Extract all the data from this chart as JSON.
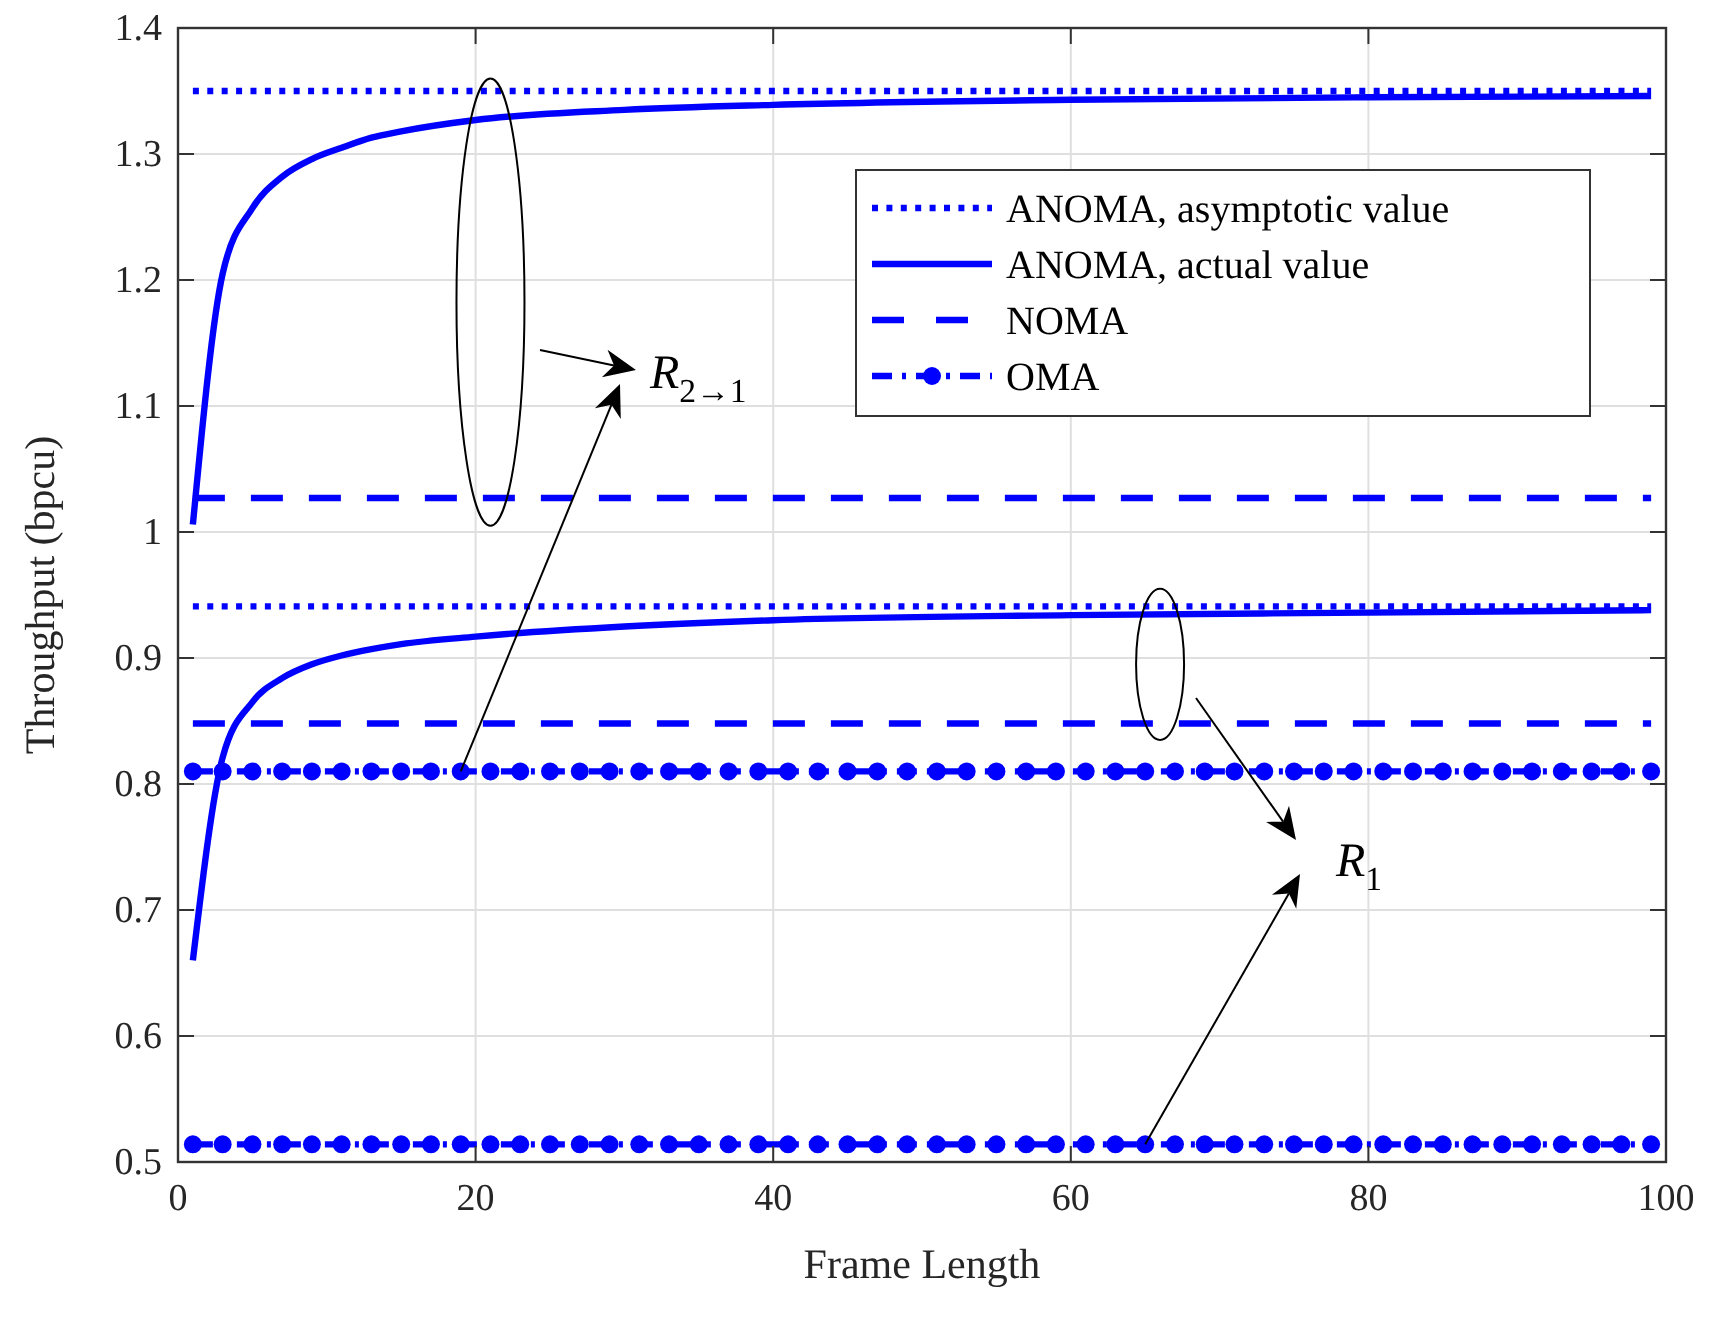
{
  "chart_data": {
    "type": "line",
    "xlabel": "Frame Length",
    "ylabel": "Throughput (bpcu)",
    "xlim": [
      0,
      100
    ],
    "ylim": [
      0.5,
      1.4
    ],
    "xticks": [
      0,
      20,
      40,
      60,
      80,
      100
    ],
    "yticks": [
      0.5,
      0.6,
      0.7,
      0.8,
      0.9,
      1,
      1.1,
      1.2,
      1.3,
      1.4
    ],
    "grid": true,
    "legend": "top right",
    "series": [
      {
        "name": "ANOMA, asymptotic value",
        "color": "#0000ff",
        "line_style": "dotted",
        "marker": "none",
        "x": [
          1,
          99
        ],
        "values": [
          1.35,
          1.35
        ]
      },
      {
        "name": "ANOMA, actual value",
        "color": "#0000ff",
        "line_style": "solid",
        "marker": "none",
        "x": [
          1,
          3,
          5,
          7,
          9,
          11,
          13,
          15,
          20,
          30,
          40,
          60,
          80,
          99
        ],
        "values": [
          1.006,
          1.205,
          1.257,
          1.282,
          1.296,
          1.305,
          1.313,
          1.318,
          1.327,
          1.335,
          1.339,
          1.343,
          1.345,
          1.346
        ]
      },
      {
        "name": "NOMA",
        "color": "#0000ff",
        "line_style": "dashed",
        "marker": "none",
        "x": [
          1,
          99
        ],
        "values": [
          1.027,
          1.027
        ]
      },
      {
        "name": "OMA",
        "color": "#0000ff",
        "line_style": "dashed",
        "marker": "circle",
        "x": [
          1,
          3,
          5,
          7,
          9,
          11,
          13,
          15,
          17,
          19,
          21,
          23,
          25,
          27,
          29,
          31,
          33,
          35,
          37,
          39,
          41,
          43,
          45,
          47,
          49,
          51,
          53,
          55,
          57,
          59,
          61,
          63,
          65,
          67,
          69,
          71,
          73,
          75,
          77,
          79,
          81,
          83,
          85,
          87,
          89,
          91,
          93,
          95,
          97,
          99
        ],
        "values": [
          0.81,
          0.81,
          0.81,
          0.81,
          0.81,
          0.81,
          0.81,
          0.81,
          0.81,
          0.81,
          0.81,
          0.81,
          0.81,
          0.81,
          0.81,
          0.81,
          0.81,
          0.81,
          0.81,
          0.81,
          0.81,
          0.81,
          0.81,
          0.81,
          0.81,
          0.81,
          0.81,
          0.81,
          0.81,
          0.81,
          0.81,
          0.81,
          0.81,
          0.81,
          0.81,
          0.81,
          0.81,
          0.81,
          0.81,
          0.81,
          0.81,
          0.81,
          0.81,
          0.81,
          0.81,
          0.81,
          0.81,
          0.81,
          0.81,
          0.81
        ]
      },
      {
        "color": "#0000ff",
        "line_style": "dotted",
        "marker": "none",
        "x": [
          1,
          99
        ],
        "values": [
          0.941,
          0.941
        ]
      },
      {
        "color": "#0000ff",
        "line_style": "solid",
        "marker": "none",
        "x": [
          1,
          3,
          5,
          7,
          9,
          11,
          13,
          15,
          20,
          30,
          40,
          60,
          80,
          99
        ],
        "values": [
          0.66,
          0.821,
          0.865,
          0.884,
          0.895,
          0.902,
          0.907,
          0.911,
          0.917,
          0.925,
          0.93,
          0.934,
          0.936,
          0.938
        ]
      },
      {
        "color": "#0000ff",
        "line_style": "dashed",
        "marker": "none",
        "x": [
          1,
          99
        ],
        "values": [
          0.848,
          0.848
        ]
      },
      {
        "color": "#0000ff",
        "line_style": "dashed",
        "marker": "circle",
        "x": [
          1,
          3,
          5,
          7,
          9,
          11,
          13,
          15,
          17,
          19,
          21,
          23,
          25,
          27,
          29,
          31,
          33,
          35,
          37,
          39,
          41,
          43,
          45,
          47,
          49,
          51,
          53,
          55,
          57,
          59,
          61,
          63,
          65,
          67,
          69,
          71,
          73,
          75,
          77,
          79,
          81,
          83,
          85,
          87,
          89,
          91,
          93,
          95,
          97,
          99
        ],
        "values": [
          0.514,
          0.514,
          0.514,
          0.514,
          0.514,
          0.514,
          0.514,
          0.514,
          0.514,
          0.514,
          0.514,
          0.514,
          0.514,
          0.514,
          0.514,
          0.514,
          0.514,
          0.514,
          0.514,
          0.514,
          0.514,
          0.514,
          0.514,
          0.514,
          0.514,
          0.514,
          0.514,
          0.514,
          0.514,
          0.514,
          0.514,
          0.514,
          0.514,
          0.514,
          0.514,
          0.514,
          0.514,
          0.514,
          0.514,
          0.514,
          0.514,
          0.514,
          0.514,
          0.514,
          0.514,
          0.514,
          0.514,
          0.514,
          0.514,
          0.514
        ]
      }
    ],
    "annotations": [
      {
        "text": "R$_{2→1}$",
        "x": 19,
        "y": 0.81
      },
      {
        "text": "R$_{1}$",
        "x": 65,
        "y": 0.514
      }
    ]
  }
}
